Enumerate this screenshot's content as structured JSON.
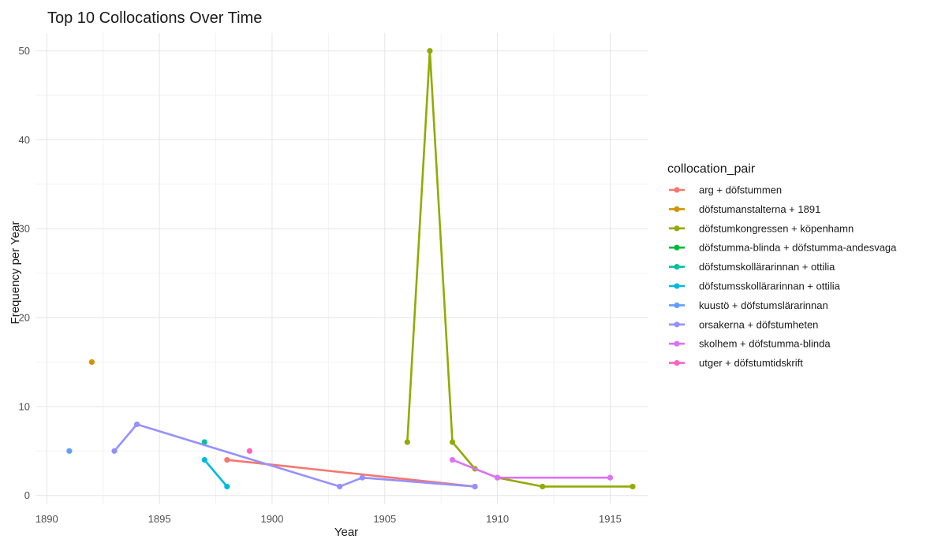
{
  "chart_data": {
    "type": "line",
    "title": "Top 10 Collocations Over Time",
    "xlabel": "Year",
    "ylabel": "Frequency per Year",
    "xlim": [
      1889.5,
      1916.7
    ],
    "ylim": [
      -1,
      52
    ],
    "x_ticks": [
      1890,
      1895,
      1900,
      1905,
      1910,
      1915
    ],
    "y_ticks": [
      0,
      10,
      20,
      30,
      40,
      50
    ],
    "grid": true,
    "legend_title": "collocation_pair",
    "legend_position": "right",
    "series": [
      {
        "name": "arg + döfstummen",
        "color": "#F8766D",
        "points": [
          [
            1898,
            4
          ],
          [
            1909,
            1
          ]
        ]
      },
      {
        "name": "döfstumanstalterna + 1891",
        "color": "#D39200",
        "points": [
          [
            1892,
            15
          ]
        ]
      },
      {
        "name": "döfstumkongressen + köpenhamn",
        "color": "#93AA00",
        "points": [
          [
            1906,
            6
          ],
          [
            1907,
            50
          ],
          [
            1908,
            6
          ],
          [
            1909,
            3
          ],
          [
            1910,
            2
          ],
          [
            1912,
            1
          ],
          [
            1916,
            1
          ]
        ]
      },
      {
        "name": "döfstumma-blinda + döfstumma-andesvaga",
        "color": "#00BA38",
        "points": []
      },
      {
        "name": "döfstumskollärarinnan + ottilia",
        "color": "#00C19F",
        "points": [
          [
            1897,
            6
          ]
        ]
      },
      {
        "name": "döfstumsskollärarinnan + ottilia",
        "color": "#00B9E3",
        "points": [
          [
            1897,
            4
          ],
          [
            1898,
            1
          ]
        ]
      },
      {
        "name": "kuustö + döfstumslärarinnan",
        "color": "#619CFF",
        "points": [
          [
            1891,
            5
          ]
        ]
      },
      {
        "name": "orsakerna + döfstumheten",
        "color": "#9590FF",
        "points": [
          [
            1893,
            5
          ],
          [
            1894,
            8
          ],
          [
            1903,
            1
          ],
          [
            1904,
            2
          ],
          [
            1909,
            1
          ]
        ]
      },
      {
        "name": "skolhem + döfstumma-blinda",
        "color": "#DB72FB",
        "points": [
          [
            1908,
            4
          ],
          [
            1910,
            2
          ],
          [
            1915,
            2
          ]
        ]
      },
      {
        "name": "utger + döfstumtidskrift",
        "color": "#FF61C3",
        "points": [
          [
            1899,
            5
          ]
        ]
      }
    ]
  }
}
